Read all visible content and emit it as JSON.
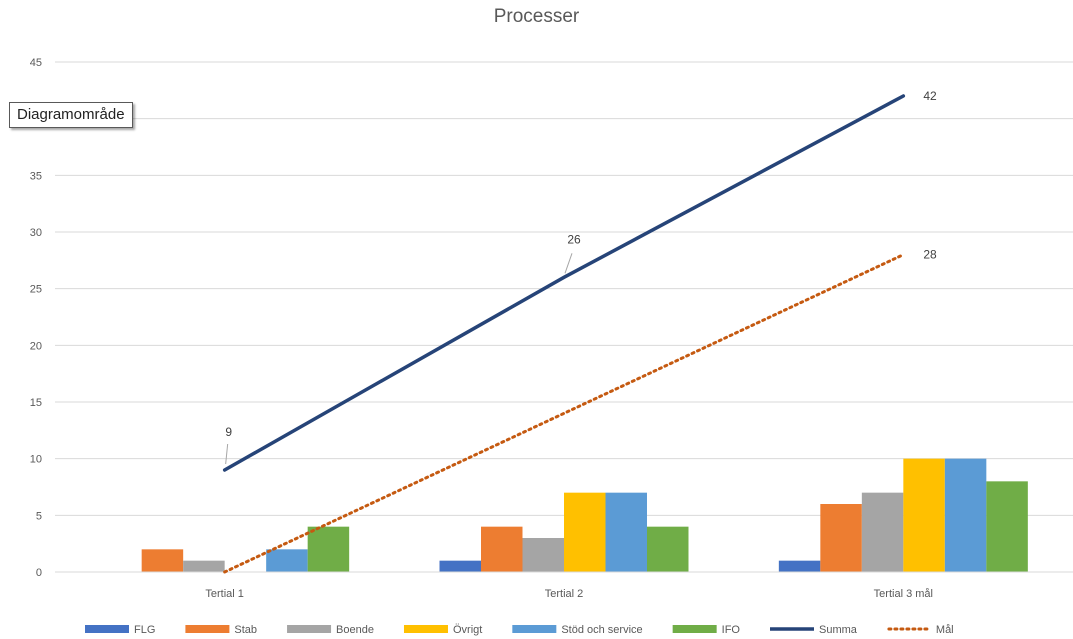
{
  "chart_data": {
    "type": "bar",
    "title": "Processer",
    "categories": [
      "Tertial 1",
      "Tertial 2",
      "Tertial 3 mål"
    ],
    "ylim": [
      0,
      45
    ],
    "yticks": [
      0,
      5,
      10,
      15,
      20,
      25,
      30,
      35,
      40,
      45
    ],
    "grid": true,
    "legend_position": "bottom",
    "series": [
      {
        "name": "FLG",
        "kind": "bar",
        "color": "#4472C4",
        "values": [
          0,
          1,
          1
        ]
      },
      {
        "name": "Stab",
        "kind": "bar",
        "color": "#ED7D31",
        "values": [
          2,
          4,
          6
        ]
      },
      {
        "name": "Boende",
        "kind": "bar",
        "color": "#A5A5A5",
        "values": [
          1,
          3,
          7
        ]
      },
      {
        "name": "Övrigt",
        "kind": "bar",
        "color": "#FFC000",
        "values": [
          0,
          7,
          10
        ]
      },
      {
        "name": "Stöd och service",
        "kind": "bar",
        "color": "#5B9BD5",
        "values": [
          2,
          7,
          10
        ]
      },
      {
        "name": "IFO",
        "kind": "bar",
        "color": "#70AD47",
        "values": [
          4,
          4,
          8
        ]
      },
      {
        "name": "Summa",
        "kind": "line",
        "color": "#264478",
        "values": [
          9,
          26,
          42
        ],
        "labels": [
          "9",
          "26",
          "42"
        ]
      },
      {
        "name": "Mål",
        "kind": "line-dotted",
        "color": "#C55A11",
        "values": [
          0,
          null,
          28
        ],
        "labels": [
          "",
          "",
          "28"
        ]
      }
    ]
  },
  "tooltip": {
    "text": "Diagramområde"
  }
}
